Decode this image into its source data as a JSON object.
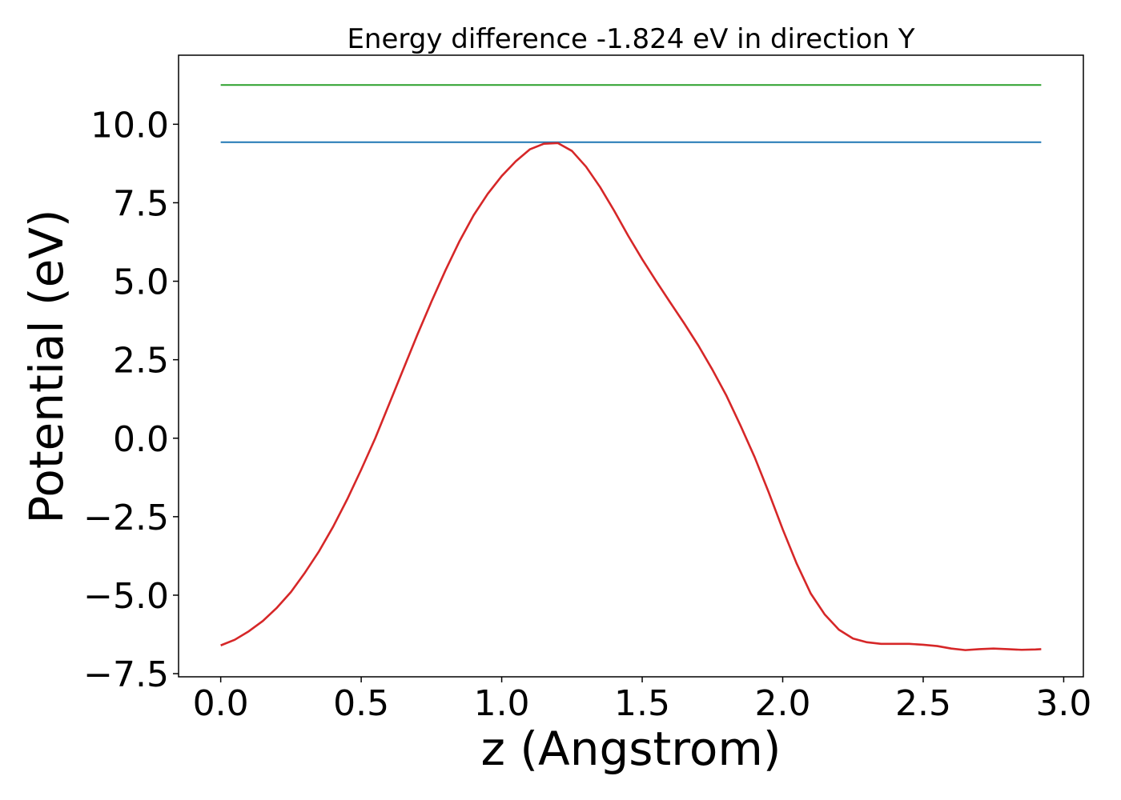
{
  "chart_data": {
    "type": "line",
    "title": "Energy difference -1.824 eV in direction Y",
    "xlabel": "z (Angstrom)",
    "ylabel": "Potential (eV)",
    "xlim": [
      -0.15,
      3.07
    ],
    "ylim": [
      -7.6,
      12.2
    ],
    "x_ticks": [
      0.0,
      0.5,
      1.0,
      1.5,
      2.0,
      2.5,
      3.0
    ],
    "x_tick_labels": [
      "0.0",
      "0.5",
      "1.0",
      "1.5",
      "2.0",
      "2.5",
      "3.0"
    ],
    "y_ticks": [
      -7.5,
      -5.0,
      -2.5,
      0.0,
      2.5,
      5.0,
      7.5,
      10.0
    ],
    "y_tick_labels": [
      "−7.5",
      "−5.0",
      "−2.5",
      "0.0",
      "2.5",
      "5.0",
      "7.5",
      "10.0"
    ],
    "grid": false,
    "legend": "none",
    "series": [
      {
        "color": "#2ca02c",
        "x": [
          0.0,
          2.92
        ],
        "y": [
          11.25,
          11.25
        ]
      },
      {
        "color": "#1f77b4",
        "x": [
          0.0,
          2.92
        ],
        "y": [
          9.43,
          9.43
        ]
      },
      {
        "color": "#d62728",
        "x": [
          0.0,
          0.05,
          0.1,
          0.15,
          0.2,
          0.25,
          0.3,
          0.35,
          0.4,
          0.45,
          0.5,
          0.55,
          0.6,
          0.65,
          0.7,
          0.75,
          0.8,
          0.85,
          0.9,
          0.95,
          1.0,
          1.05,
          1.1,
          1.15,
          1.2,
          1.25,
          1.3,
          1.35,
          1.4,
          1.45,
          1.5,
          1.55,
          1.6,
          1.65,
          1.7,
          1.75,
          1.8,
          1.85,
          1.9,
          1.95,
          2.0,
          2.05,
          2.1,
          2.15,
          2.2,
          2.25,
          2.3,
          2.35,
          2.4,
          2.45,
          2.5,
          2.55,
          2.6,
          2.65,
          2.7,
          2.75,
          2.8,
          2.85,
          2.9,
          2.92
        ],
        "y": [
          -6.6,
          -6.42,
          -6.15,
          -5.82,
          -5.4,
          -4.9,
          -4.28,
          -3.6,
          -2.82,
          -1.95,
          -1.0,
          0.0,
          1.1,
          2.2,
          3.3,
          4.35,
          5.35,
          6.28,
          7.1,
          7.78,
          8.35,
          8.82,
          9.2,
          9.38,
          9.4,
          9.15,
          8.65,
          8.0,
          7.25,
          6.45,
          5.7,
          5.0,
          4.32,
          3.65,
          2.95,
          2.18,
          1.35,
          0.4,
          -0.6,
          -1.72,
          -2.9,
          -4.0,
          -4.95,
          -5.62,
          -6.1,
          -6.38,
          -6.5,
          -6.55,
          -6.55,
          -6.55,
          -6.58,
          -6.62,
          -6.7,
          -6.75,
          -6.72,
          -6.7,
          -6.72,
          -6.74,
          -6.73,
          -6.72
        ]
      }
    ]
  }
}
